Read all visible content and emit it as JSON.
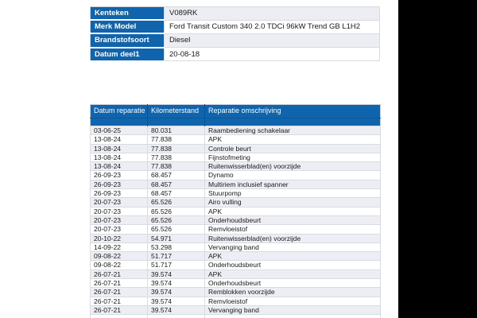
{
  "colors": {
    "header_blue": "#0F64AD",
    "row_alt": "#ECEEF3",
    "row_white": "#FFFFFF",
    "border": "#C9CDD5",
    "text": "#1A1A1A",
    "right_bar_black": "#000000"
  },
  "vehicle_info": {
    "rows": [
      {
        "label": "Kenteken",
        "value": "V089RK"
      },
      {
        "label": "Merk Model",
        "value": "Ford Transit Custom 340 2.0 TDCi 96kW Trend GB L1H2"
      },
      {
        "label": "Brandstofsoort",
        "value": "Diesel"
      },
      {
        "label": "Datum deel1",
        "value": "20-08-18"
      }
    ]
  },
  "repair_history": {
    "columns": [
      "Datum reparatie",
      "Kilometerstand",
      "Reparatie omschrijving"
    ],
    "rows": [
      [
        "03-06-25",
        "80.031",
        "Raambediening schakelaar"
      ],
      [
        "13-08-24",
        "77.838",
        "APK"
      ],
      [
        "13-08-24",
        "77.838",
        "Controle beurt"
      ],
      [
        "13-08-24",
        "77.838",
        "Fijnstofmeting"
      ],
      [
        "13-08-24",
        "77.838",
        "Ruitenwisserblad(en) voorzijde"
      ],
      [
        "26-09-23",
        "68.457",
        "Dynamo"
      ],
      [
        "26-09-23",
        "68.457",
        "Multiriem inclusief spanner"
      ],
      [
        "26-09-23",
        "68.457",
        "Stuurpomp"
      ],
      [
        "20-07-23",
        "65.526",
        "Airo vulling"
      ],
      [
        "20-07-23",
        "65.526",
        "APK"
      ],
      [
        "20-07-23",
        "65.526",
        "Onderhoudsbeurt"
      ],
      [
        "20-07-23",
        "65.526",
        "Remvloeistof"
      ],
      [
        "20-10-22",
        "54.971",
        "Ruitenwisserblad(en) voorzijde"
      ],
      [
        "14-09-22",
        "53.298",
        "Vervanging band"
      ],
      [
        "09-08-22",
        "51.717",
        "APK"
      ],
      [
        "09-08-22",
        "51.717",
        "Onderhoudsbeurt"
      ],
      [
        "26-07-21",
        "39.574",
        "APK"
      ],
      [
        "26-07-21",
        "39.574",
        "Onderhoudsbeurt"
      ],
      [
        "26-07-21",
        "39.574",
        "Remblokken voorzijde"
      ],
      [
        "26-07-21",
        "39.574",
        "Remvloeistof"
      ],
      [
        "26-07-21",
        "39.574",
        "Vervanging band"
      ]
    ]
  }
}
